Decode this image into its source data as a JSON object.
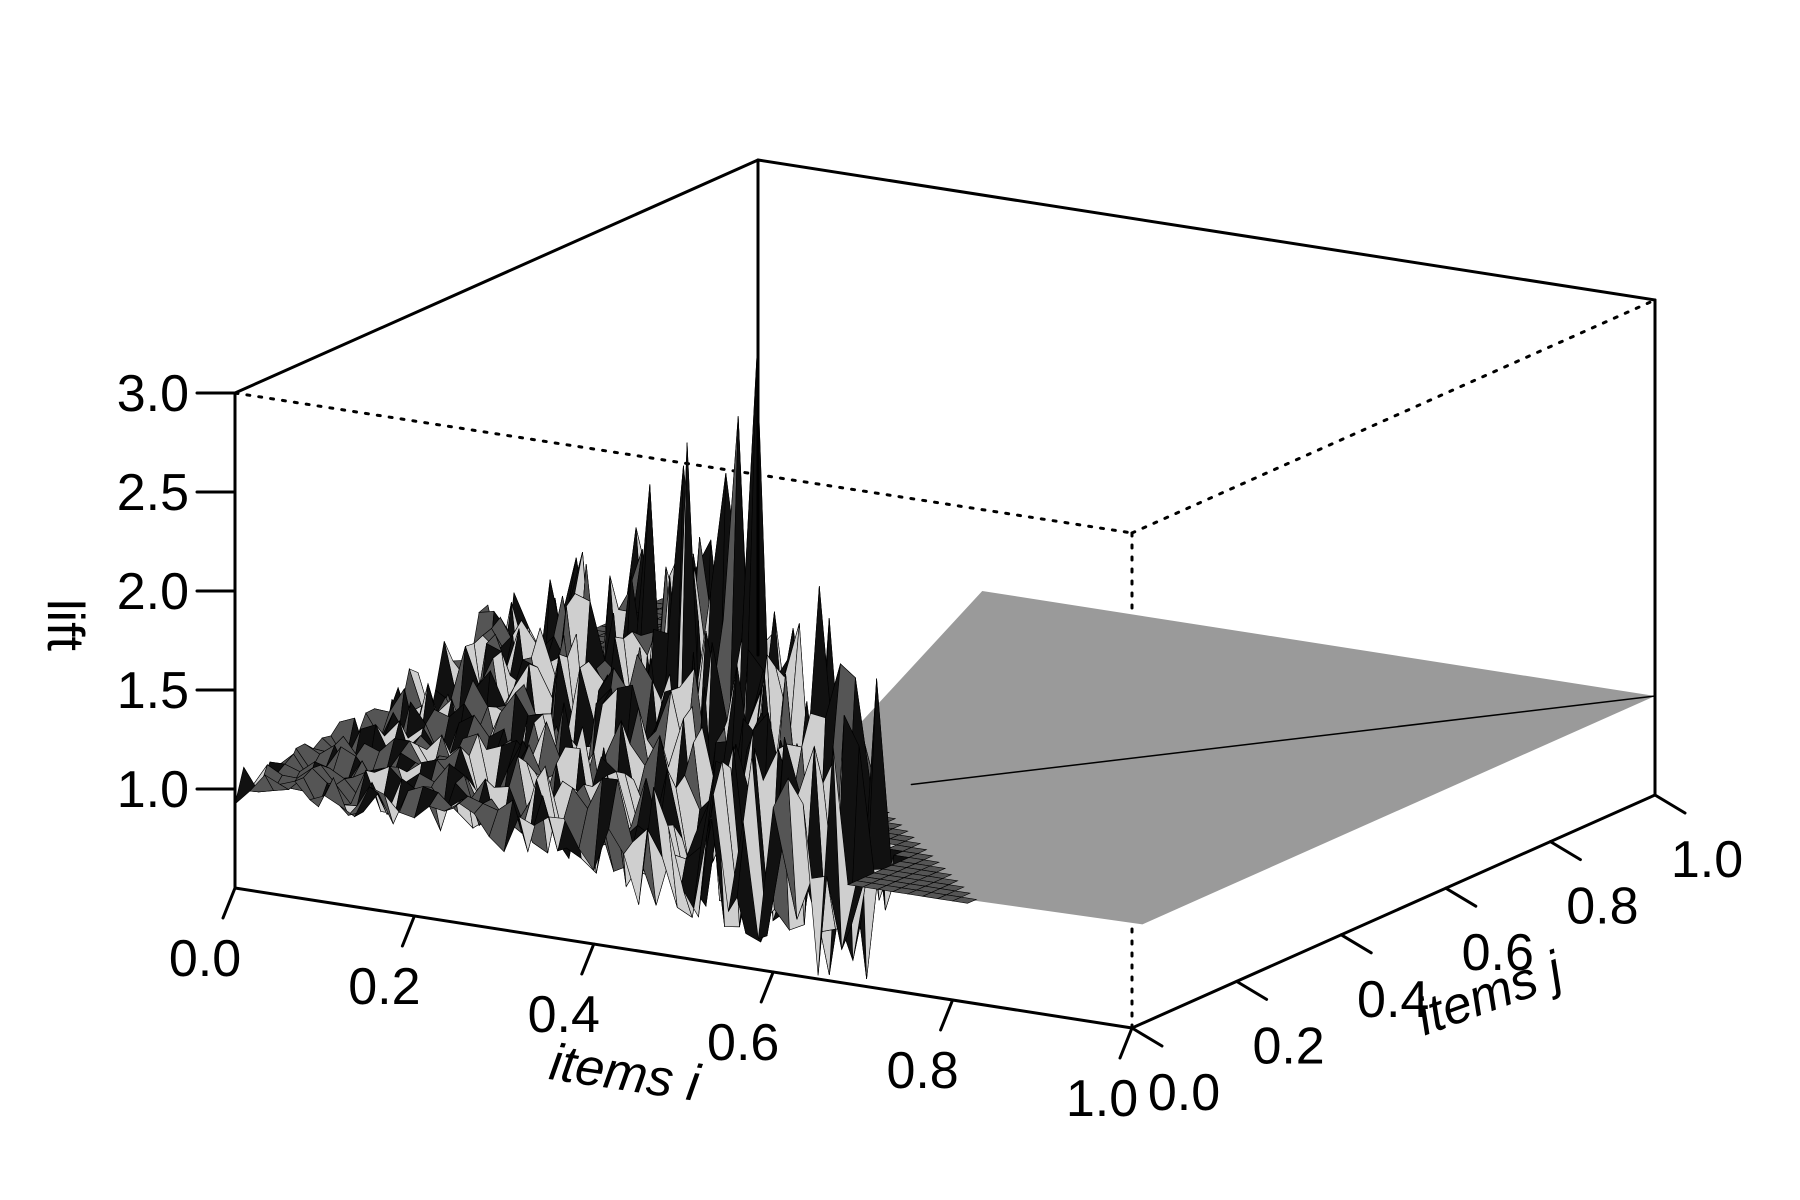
{
  "chart_data": {
    "type": "surface3d",
    "x_axis": {
      "label": "items i",
      "ticks": [
        "0.0",
        "0.2",
        "0.4",
        "0.6",
        "0.8",
        "1.0"
      ],
      "range": [
        0,
        1
      ]
    },
    "y_axis": {
      "label": "items j",
      "ticks": [
        "0.0",
        "0.2",
        "0.4",
        "0.6",
        "0.8",
        "1.0"
      ],
      "range": [
        0,
        1
      ]
    },
    "z_axis": {
      "label": "lift",
      "ticks": [
        "1.0",
        "1.5",
        "2.0",
        "2.5",
        "3.0"
      ],
      "range": [
        0.5,
        3.0
      ]
    },
    "surface": {
      "description_of_values": "lift(i,j) ≈ 1.0 where data exists (i + j ≤ ~0.75), with noisy spikes whose amplitude grows toward the diagonal; elsewhere a flat plane at lift = 1",
      "baseline_lift": 1.0,
      "spikes": [
        {
          "x": 0.42,
          "y": 0.28,
          "lift": 3.15
        },
        {
          "x": 0.36,
          "y": 0.34,
          "lift": 2.75
        },
        {
          "x": 0.3,
          "y": 0.35,
          "lift": 2.55
        },
        {
          "x": 0.4,
          "y": 0.3,
          "lift": 2.45
        },
        {
          "x": 0.34,
          "y": 0.36,
          "lift": 2.4
        },
        {
          "x": 0.26,
          "y": 0.4,
          "lift": 2.35
        },
        {
          "x": 0.2,
          "y": 0.45,
          "lift": 2.15
        },
        {
          "x": 0.58,
          "y": 0.12,
          "lift": 2.3
        },
        {
          "x": 0.62,
          "y": 0.1,
          "lift": 1.95
        },
        {
          "x": 0.52,
          "y": 0.16,
          "lift": 1.75
        },
        {
          "x": 0.48,
          "y": 0.18,
          "lift": 1.7
        }
      ],
      "colors": {
        "surface_dark": "#111111",
        "surface_mid": "#555555",
        "surface_light": "#cfcfcf",
        "plane": "#9a9a9a"
      }
    },
    "grid": false,
    "legend": "none"
  }
}
